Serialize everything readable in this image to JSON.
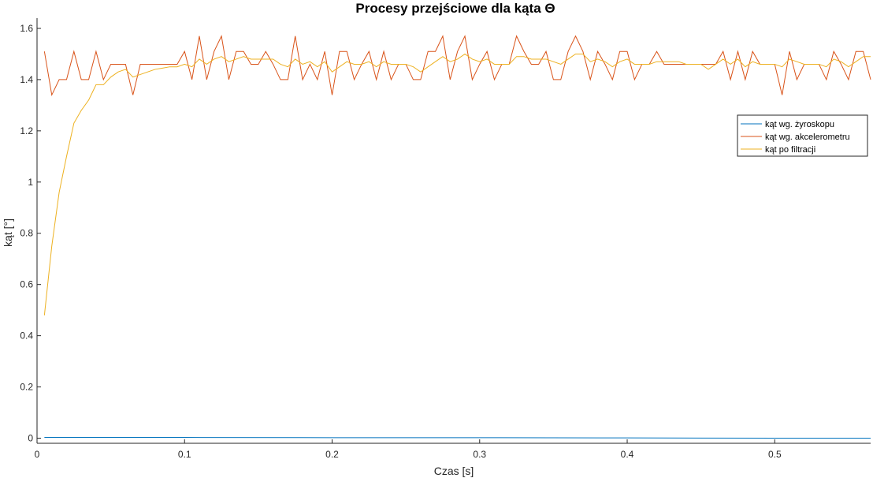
{
  "chart_data": {
    "type": "line",
    "title": "Procesy przejściowe dla kąta Θ",
    "xlabel": "Czas [s]",
    "ylabel": "kąt [°]",
    "xlim": [
      0,
      0.565
    ],
    "ylim": [
      -0.02,
      1.64
    ],
    "xticks": [
      0,
      0.1,
      0.2,
      0.3,
      0.4,
      0.5
    ],
    "xtick_labels": [
      "0",
      "0.1",
      "0.2",
      "0.3",
      "0.4",
      "0.5"
    ],
    "yticks": [
      0,
      0.2,
      0.4,
      0.6,
      0.8,
      1.0,
      1.2,
      1.4,
      1.6
    ],
    "ytick_labels": [
      "0",
      "0.2",
      "0.4",
      "0.6",
      "0.8",
      "1",
      "1.2",
      "1.4",
      "1.6"
    ],
    "grid": false,
    "legend_position": "right",
    "colors": {
      "gyro": "#0072BD",
      "accel": "#D95319",
      "filter": "#EDB120",
      "axis": "#262626"
    },
    "series": [
      {
        "name": "kąt wg. żyroskopu",
        "color": "#0072BD",
        "x": [
          0.005,
          0.1,
          0.2,
          0.3,
          0.4,
          0.5,
          0.565
        ],
        "y": [
          0.003,
          0.003,
          0.002,
          0.002,
          0.001,
          0.0,
          0.0
        ]
      },
      {
        "name": "kąt wg. akcelerometru",
        "color": "#D95319",
        "x": [
          0.005,
          0.01,
          0.015,
          0.02,
          0.025,
          0.03,
          0.035,
          0.04,
          0.045,
          0.05,
          0.055,
          0.06,
          0.065,
          0.07,
          0.075,
          0.08,
          0.085,
          0.09,
          0.095,
          0.1,
          0.105,
          0.11,
          0.115,
          0.12,
          0.125,
          0.13,
          0.135,
          0.14,
          0.145,
          0.15,
          0.155,
          0.16,
          0.165,
          0.17,
          0.175,
          0.18,
          0.185,
          0.19,
          0.195,
          0.2,
          0.205,
          0.21,
          0.215,
          0.22,
          0.225,
          0.23,
          0.235,
          0.24,
          0.245,
          0.25,
          0.255,
          0.26,
          0.265,
          0.27,
          0.275,
          0.28,
          0.285,
          0.29,
          0.295,
          0.3,
          0.305,
          0.31,
          0.315,
          0.32,
          0.325,
          0.33,
          0.335,
          0.34,
          0.345,
          0.35,
          0.355,
          0.36,
          0.365,
          0.37,
          0.375,
          0.38,
          0.385,
          0.39,
          0.395,
          0.4,
          0.405,
          0.41,
          0.415,
          0.42,
          0.425,
          0.43,
          0.435,
          0.44,
          0.445,
          0.45,
          0.455,
          0.46,
          0.465,
          0.47,
          0.475,
          0.48,
          0.485,
          0.49,
          0.495,
          0.5,
          0.505,
          0.51,
          0.515,
          0.52,
          0.525,
          0.53,
          0.535,
          0.54,
          0.545,
          0.55,
          0.555,
          0.56,
          0.565
        ],
        "y": [
          1.51,
          1.34,
          1.4,
          1.4,
          1.51,
          1.4,
          1.4,
          1.51,
          1.4,
          1.46,
          1.46,
          1.46,
          1.34,
          1.46,
          1.46,
          1.46,
          1.46,
          1.46,
          1.46,
          1.51,
          1.4,
          1.57,
          1.4,
          1.51,
          1.57,
          1.4,
          1.51,
          1.51,
          1.46,
          1.46,
          1.51,
          1.46,
          1.4,
          1.4,
          1.57,
          1.4,
          1.46,
          1.4,
          1.51,
          1.34,
          1.51,
          1.51,
          1.4,
          1.46,
          1.51,
          1.4,
          1.51,
          1.4,
          1.46,
          1.46,
          1.4,
          1.4,
          1.51,
          1.51,
          1.57,
          1.4,
          1.51,
          1.57,
          1.4,
          1.46,
          1.51,
          1.4,
          1.46,
          1.46,
          1.57,
          1.51,
          1.46,
          1.46,
          1.51,
          1.4,
          1.4,
          1.51,
          1.57,
          1.51,
          1.4,
          1.51,
          1.46,
          1.4,
          1.51,
          1.51,
          1.4,
          1.46,
          1.46,
          1.51,
          1.46,
          1.46,
          1.46,
          1.46,
          1.46,
          1.46,
          1.46,
          1.46,
          1.51,
          1.4,
          1.51,
          1.4,
          1.51,
          1.46,
          1.46,
          1.46,
          1.34,
          1.51,
          1.4,
          1.46,
          1.46,
          1.46,
          1.4,
          1.51,
          1.46,
          1.4,
          1.51,
          1.51,
          1.4
        ],
        "y_note": ""
      },
      {
        "name": "kąt po filtracji",
        "color": "#EDB120",
        "x": [
          0.005,
          0.01,
          0.015,
          0.02,
          0.025,
          0.03,
          0.035,
          0.04,
          0.045,
          0.05,
          0.055,
          0.06,
          0.065,
          0.07,
          0.075,
          0.08,
          0.085,
          0.09,
          0.095,
          0.1,
          0.105,
          0.11,
          0.115,
          0.12,
          0.125,
          0.13,
          0.135,
          0.14,
          0.145,
          0.15,
          0.155,
          0.16,
          0.165,
          0.17,
          0.175,
          0.18,
          0.185,
          0.19,
          0.195,
          0.2,
          0.205,
          0.21,
          0.215,
          0.22,
          0.225,
          0.23,
          0.235,
          0.24,
          0.245,
          0.25,
          0.255,
          0.26,
          0.265,
          0.27,
          0.275,
          0.28,
          0.285,
          0.29,
          0.295,
          0.3,
          0.305,
          0.31,
          0.315,
          0.32,
          0.325,
          0.33,
          0.335,
          0.34,
          0.345,
          0.35,
          0.355,
          0.36,
          0.365,
          0.37,
          0.375,
          0.38,
          0.385,
          0.39,
          0.395,
          0.4,
          0.405,
          0.41,
          0.415,
          0.42,
          0.425,
          0.43,
          0.435,
          0.44,
          0.445,
          0.45,
          0.455,
          0.46,
          0.465,
          0.47,
          0.475,
          0.48,
          0.485,
          0.49,
          0.495,
          0.5,
          0.505,
          0.51,
          0.515,
          0.52,
          0.525,
          0.53,
          0.535,
          0.54,
          0.545,
          0.55,
          0.555,
          0.56,
          0.565
        ],
        "y": [
          0.48,
          0.75,
          0.96,
          1.1,
          1.23,
          1.28,
          1.32,
          1.38,
          1.38,
          1.41,
          1.43,
          1.44,
          1.41,
          1.42,
          1.43,
          1.44,
          1.445,
          1.45,
          1.45,
          1.46,
          1.45,
          1.48,
          1.46,
          1.48,
          1.49,
          1.47,
          1.48,
          1.49,
          1.48,
          1.48,
          1.48,
          1.48,
          1.46,
          1.45,
          1.48,
          1.46,
          1.47,
          1.45,
          1.47,
          1.43,
          1.45,
          1.47,
          1.46,
          1.46,
          1.47,
          1.45,
          1.47,
          1.46,
          1.46,
          1.46,
          1.45,
          1.43,
          1.45,
          1.47,
          1.49,
          1.47,
          1.48,
          1.5,
          1.48,
          1.47,
          1.48,
          1.46,
          1.46,
          1.46,
          1.49,
          1.49,
          1.48,
          1.48,
          1.48,
          1.47,
          1.46,
          1.48,
          1.5,
          1.5,
          1.47,
          1.48,
          1.47,
          1.45,
          1.47,
          1.48,
          1.46,
          1.46,
          1.46,
          1.47,
          1.47,
          1.47,
          1.47,
          1.46,
          1.46,
          1.46,
          1.44,
          1.46,
          1.48,
          1.46,
          1.48,
          1.45,
          1.47,
          1.46,
          1.46,
          1.46,
          1.45,
          1.48,
          1.47,
          1.46,
          1.46,
          1.46,
          1.45,
          1.48,
          1.47,
          1.45,
          1.47,
          1.49,
          1.49
        ]
      }
    ]
  }
}
